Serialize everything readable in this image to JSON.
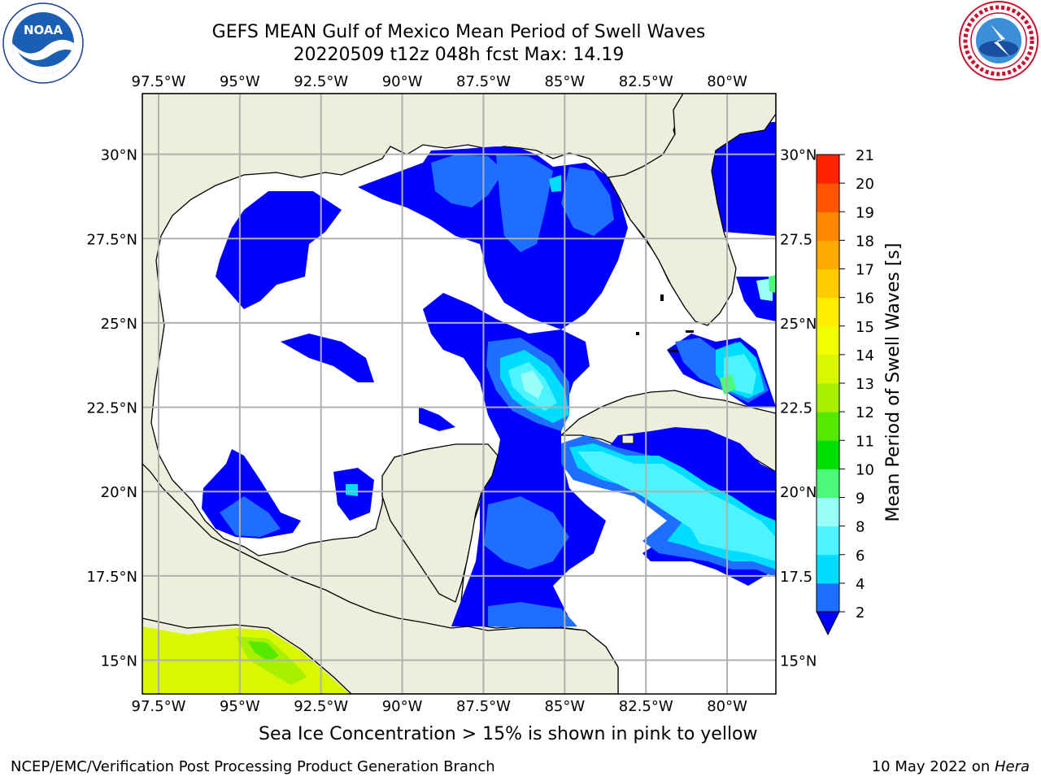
{
  "header": {
    "title_line1": "GEFS MEAN Gulf of Mexico Mean Period of Swell Waves",
    "title_line2": "20220509 t12z 048h fcst   Max: 14.19"
  },
  "logos": {
    "left": "noaa-logo",
    "left_text": "NOAA",
    "right": "national-weather-service-logo"
  },
  "map": {
    "region": "Gulf of Mexico",
    "lon_ticks_top": [
      "97.5°W",
      "95°W",
      "92.5°W",
      "90°W",
      "87.5°W",
      "85°W",
      "82.5°W",
      "80°W"
    ],
    "lon_ticks_bottom": [
      "97.5°W",
      "95°W",
      "92.5°W",
      "90°W",
      "87.5°W",
      "85°W",
      "82.5°W",
      "80°W"
    ],
    "lat_ticks_left": [
      "30°N",
      "27.5°N",
      "25°N",
      "22.5°N",
      "20°N",
      "17.5°N",
      "15°N"
    ],
    "lat_ticks_right": [
      "30°N",
      "27.5",
      "25°N",
      "22.5",
      "20°N",
      "17.5",
      "15°N"
    ],
    "extent": {
      "lon_min": -98,
      "lon_max": -78.5,
      "lat_min": 14,
      "lat_max": 31.8
    },
    "colors": {
      "land": "#eeeedd",
      "ocean_no_data": "#ffffff",
      "grid": "#b0b0b0"
    }
  },
  "colorbar": {
    "label": "Mean Period of Swell Waves [s]",
    "tick_labels": [
      "2",
      "4",
      "6",
      "8",
      "9",
      "10",
      "11",
      "12",
      "13",
      "14",
      "15",
      "16",
      "17",
      "18",
      "19",
      "20",
      "21"
    ],
    "colors": [
      "#1e6eff",
      "#00ddff",
      "#4df4ff",
      "#99fff8",
      "#4df97a",
      "#00e000",
      "#55e800",
      "#a6f000",
      "#d8f700",
      "#f2ff00",
      "#ffee00",
      "#ffcc00",
      "#ffaa00",
      "#ff8800",
      "#ff5500",
      "#ff2200"
    ],
    "under_color": "#0000ff"
  },
  "footer": {
    "note": "Sea Ice Concentration > 15% is shown in pink to yellow",
    "credit_left": "NCEP/EMC/Verification Post Processing Product Generation Branch",
    "credit_date": "10 May 2022 on ",
    "credit_machine": "Hera"
  }
}
